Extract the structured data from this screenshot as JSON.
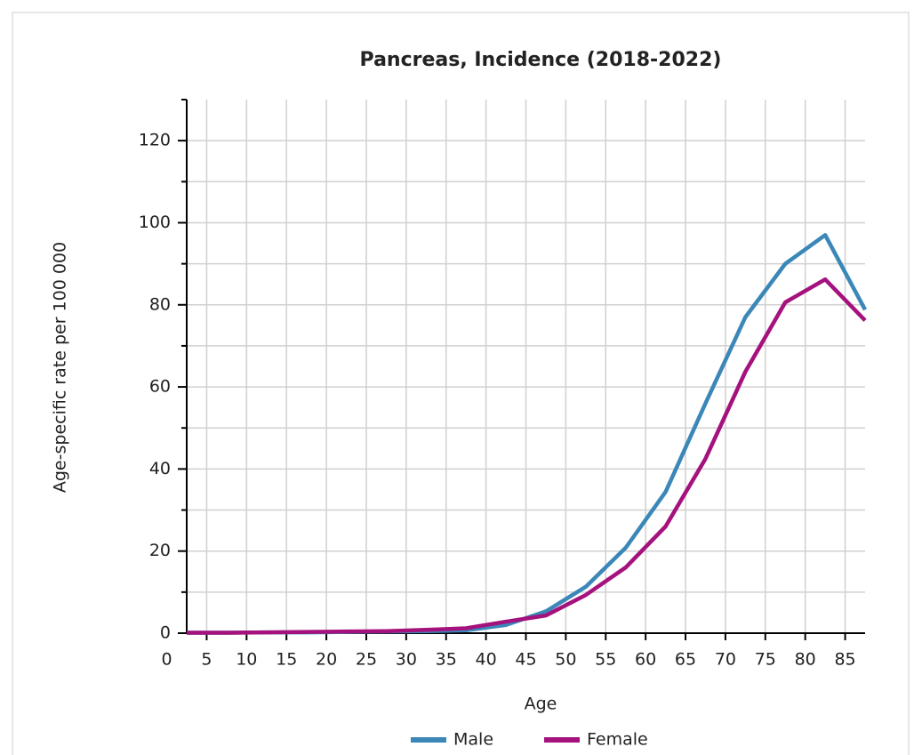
{
  "chart_data": {
    "type": "line",
    "title": "Pancreas, Incidence (2018-2022)",
    "x_label": "Age",
    "y_label": "Age-specific rate per 100 000",
    "x": [
      2.5,
      7.5,
      12.5,
      17.5,
      22.5,
      27.5,
      32.5,
      37.5,
      42.5,
      47.5,
      52.5,
      57.5,
      62.5,
      67.5,
      72.5,
      77.5,
      82.5,
      87.5
    ],
    "series": [
      {
        "name": "Male",
        "color": "#3a87b8",
        "values": [
          0.1,
          0.1,
          0.2,
          0.2,
          0.3,
          0.4,
          0.5,
          0.7,
          2.0,
          5.3,
          11.3,
          20.8,
          34.4,
          56,
          77,
          90,
          97,
          78.8
        ]
      },
      {
        "name": "Female",
        "color": "#a5117d",
        "values": [
          0.1,
          0.1,
          0.2,
          0.3,
          0.4,
          0.5,
          0.8,
          1.2,
          2.8,
          4.3,
          9.3,
          16,
          26,
          42.5,
          63.7,
          80.6,
          86.2,
          76.2
        ]
      }
    ],
    "xlim": [
      2.5,
      87.5
    ],
    "xticks": [
      0,
      5,
      10,
      15,
      20,
      25,
      30,
      35,
      40,
      45,
      50,
      55,
      60,
      65,
      70,
      75,
      80,
      85
    ],
    "ylim": [
      0,
      130
    ],
    "yticks": [
      0,
      20,
      40,
      60,
      80,
      100,
      120
    ],
    "minor_yticks": [
      10,
      30,
      50,
      70,
      90,
      110
    ],
    "grid": true,
    "legend": "bottom"
  }
}
